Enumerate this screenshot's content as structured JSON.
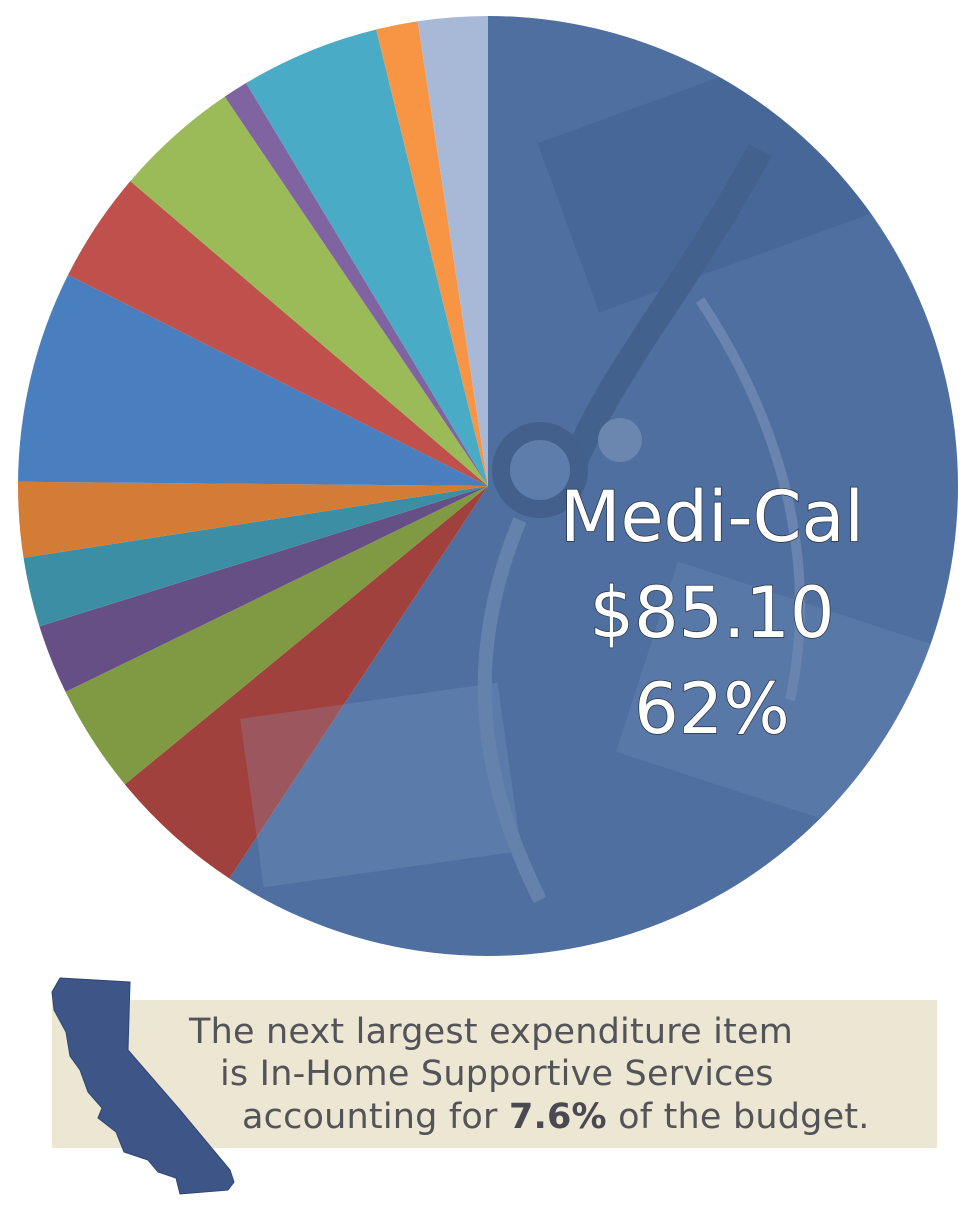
{
  "chart_data": {
    "type": "pie",
    "start": "12 o'clock",
    "direction": "clockwise",
    "slices": [
      {
        "label": "Medi-Cal",
        "percent": 62,
        "color": "#4e6f9f"
      },
      {
        "label": "",
        "percent": 5.0,
        "color": "#a0413e"
      },
      {
        "label": "",
        "percent": 3.9,
        "color": "#7f9a43"
      },
      {
        "label": "",
        "percent": 2.5,
        "color": "#664f84"
      },
      {
        "label": "",
        "percent": 2.5,
        "color": "#3c8ea4"
      },
      {
        "label": "",
        "percent": 2.7,
        "color": "#d27c36"
      },
      {
        "label": "",
        "percent": 7.6,
        "color": "#4a7fbf"
      },
      {
        "label": "",
        "percent": 4.0,
        "color": "#c0504c"
      },
      {
        "label": "",
        "percent": 4.5,
        "color": "#9bbb58"
      },
      {
        "label": "",
        "percent": 0.9,
        "color": "#8064a2"
      },
      {
        "label": "",
        "percent": 5.0,
        "color": "#4aabc6"
      },
      {
        "label": "",
        "percent": 1.5,
        "color": "#f79545"
      },
      {
        "label": "",
        "percent": 2.5,
        "color": "#a8b9d8"
      }
    ],
    "highlight": {
      "name": "Medi-Cal",
      "amount": "$85.10",
      "percent": "62%"
    }
  },
  "note": {
    "line1": "The next largest expenditure item",
    "line2": "is In-Home Supportive Services",
    "line3_pre": "accounting for ",
    "line3_bold": "7.6%",
    "line3_post": " of the budget."
  },
  "icon": {
    "name": "california-map-icon",
    "color": "#3d5687"
  }
}
